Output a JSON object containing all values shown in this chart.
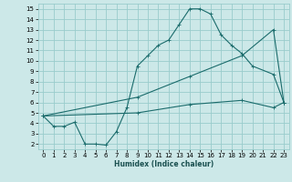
{
  "xlabel": "Humidex (Indice chaleur)",
  "bg_color": "#cce8e8",
  "grid_color": "#99cccc",
  "line_color": "#1a6b6b",
  "xlim": [
    -0.5,
    23.5
  ],
  "ylim": [
    1.5,
    15.5
  ],
  "xticks": [
    0,
    1,
    2,
    3,
    4,
    5,
    6,
    7,
    8,
    9,
    10,
    11,
    12,
    13,
    14,
    15,
    16,
    17,
    18,
    19,
    20,
    21,
    22,
    23
  ],
  "yticks": [
    2,
    3,
    4,
    5,
    6,
    7,
    8,
    9,
    10,
    11,
    12,
    13,
    14,
    15
  ],
  "curve1_x": [
    0,
    1,
    2,
    3,
    4,
    5,
    6,
    7,
    8,
    9,
    10,
    11,
    12,
    13,
    14,
    15,
    16,
    17,
    18,
    19,
    20,
    22,
    23
  ],
  "curve1_y": [
    4.7,
    3.7,
    3.7,
    4.1,
    2.0,
    2.0,
    1.9,
    3.2,
    5.5,
    9.5,
    10.5,
    11.5,
    12.0,
    13.5,
    15.0,
    15.0,
    14.5,
    12.5,
    11.5,
    10.7,
    9.5,
    8.7,
    6.0
  ],
  "curve2_x": [
    0,
    9,
    14,
    19,
    22,
    23
  ],
  "curve2_y": [
    4.7,
    6.5,
    8.5,
    10.5,
    13.0,
    6.0
  ],
  "curve3_x": [
    0,
    9,
    14,
    19,
    22,
    23
  ],
  "curve3_y": [
    4.7,
    5.0,
    5.8,
    6.2,
    5.5,
    6.0
  ]
}
